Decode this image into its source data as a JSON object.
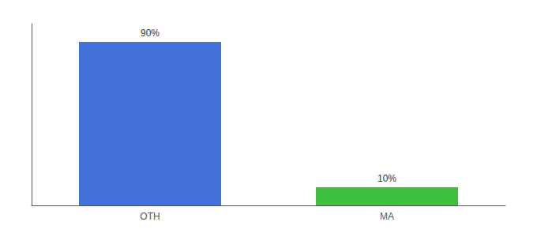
{
  "chart_data": {
    "type": "bar",
    "categories": [
      "OTH",
      "MA"
    ],
    "values": [
      90,
      10
    ],
    "value_labels": [
      "90%",
      "10%"
    ],
    "colors": [
      "#4472db",
      "#3dbe3d"
    ],
    "ylim": [
      0,
      100
    ],
    "grid": false,
    "data_labels": true,
    "tick_labels": "x"
  }
}
